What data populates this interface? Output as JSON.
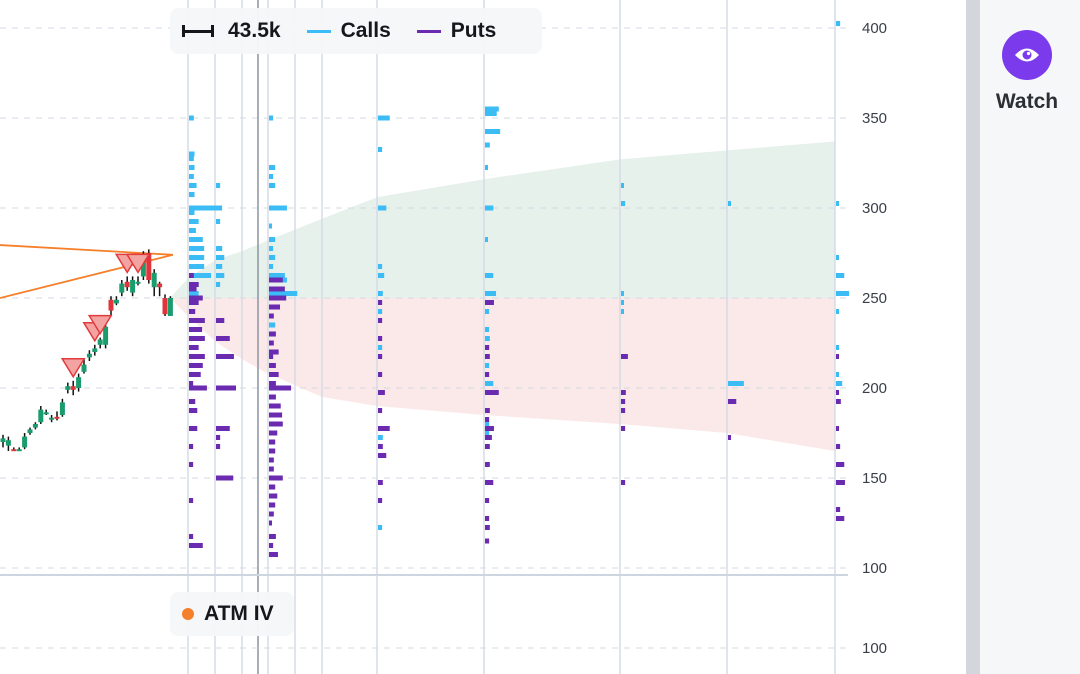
{
  "colors": {
    "calls": "#3bbcf5",
    "puts": "#6a2bb0",
    "candle_up": "#1a9c6c",
    "candle_down": "#e0363b",
    "trendline": "#f57f2a",
    "marker_fill": "#f4a3a3",
    "marker_stroke": "#e23b3b",
    "cone_up": "#e7f1ec",
    "cone_down": "#fbe9e9",
    "watch": "#7c3aed",
    "atm_iv": "#f57f2a"
  },
  "legend": {
    "scale_label": "43.5k",
    "calls_label": "Calls",
    "puts_label": "Puts",
    "atm_iv_label": "ATM IV"
  },
  "sidebar": {
    "watch_label": "Watch",
    "watch_icon": "eye-icon"
  },
  "lower_pane": {
    "y_ticks": [
      "100",
      "100"
    ]
  },
  "chart_data": {
    "type": "candlestick+options-volume-profile",
    "y_ticks": [
      400,
      350,
      300,
      250,
      200,
      150,
      100
    ],
    "ylim": [
      100,
      400
    ],
    "scale_volume_k": 43.5,
    "candles": [
      [
        170,
        172,
        174,
        167
      ],
      [
        168,
        171,
        173,
        165
      ],
      [
        166,
        165.5,
        167,
        165
      ],
      [
        165.5,
        166,
        167,
        165
      ],
      [
        167,
        173,
        175,
        166
      ],
      [
        175,
        177,
        178,
        174
      ],
      [
        178,
        180,
        181,
        177
      ],
      [
        181,
        188,
        190,
        180
      ],
      [
        186,
        186.5,
        188,
        185
      ],
      [
        183,
        183.5,
        185,
        181
      ],
      [
        184,
        183,
        187,
        182
      ],
      [
        185,
        192,
        194,
        184
      ],
      [
        199,
        201,
        203,
        197
      ],
      [
        201,
        199,
        204,
        196
      ],
      [
        200,
        206,
        208,
        198
      ],
      [
        209,
        213,
        216,
        208
      ],
      [
        217,
        219,
        221,
        215
      ],
      [
        220,
        222,
        224,
        218
      ],
      [
        224,
        227,
        228,
        222
      ],
      [
        224,
        234,
        236,
        222
      ],
      [
        249,
        243,
        251,
        240
      ],
      [
        247,
        249,
        251,
        246
      ],
      [
        253,
        258,
        260,
        251
      ],
      [
        259,
        256,
        262,
        254
      ],
      [
        253,
        260,
        262,
        251
      ],
      [
        258,
        259,
        262,
        257
      ],
      [
        262,
        274,
        276,
        260
      ],
      [
        275,
        260,
        277,
        258
      ],
      [
        256,
        264,
        266,
        251
      ],
      [
        258,
        256,
        259,
        251
      ],
      [
        250,
        241,
        252,
        240
      ],
      [
        240,
        250,
        251,
        240
      ]
    ],
    "signal_markers": [
      13,
      17,
      18,
      23,
      25
    ],
    "trendlines": [
      {
        "from": [
          0,
          279.4
        ],
        "to": [
          30,
          274
        ]
      },
      {
        "from": [
          0,
          250
        ],
        "to": [
          30,
          274
        ]
      }
    ],
    "expected_move_cone": {
      "center": 250,
      "upper": [
        250,
        261,
        271,
        276,
        282,
        294,
        306,
        316,
        327,
        332,
        337
      ],
      "lower": [
        250,
        240,
        226,
        216,
        208,
        195,
        190,
        185,
        180,
        175,
        165
      ]
    },
    "expiries": [
      {
        "calls": [
          [
            350,
            7
          ],
          [
            330,
            8
          ],
          [
            327.5,
            7
          ],
          [
            322.5,
            8
          ],
          [
            317.5,
            7
          ],
          [
            312.5,
            11
          ],
          [
            307.5,
            8
          ],
          [
            300,
            48
          ],
          [
            297.5,
            8
          ],
          [
            292.5,
            14
          ],
          [
            287.5,
            10
          ],
          [
            282.5,
            20
          ],
          [
            277.5,
            22
          ],
          [
            272.5,
            22
          ],
          [
            267.5,
            22
          ],
          [
            262.5,
            32
          ],
          [
            257.5,
            14
          ],
          [
            252.5,
            14
          ]
        ],
        "puts": [
          [
            262.5,
            7
          ],
          [
            257.5,
            14
          ],
          [
            255,
            11
          ],
          [
            250,
            20
          ],
          [
            247.5,
            14
          ],
          [
            242.5,
            9
          ],
          [
            237.5,
            23
          ],
          [
            232.5,
            19
          ],
          [
            227.5,
            23
          ],
          [
            222.5,
            14
          ],
          [
            217.5,
            23
          ],
          [
            212.5,
            20
          ],
          [
            207.5,
            17
          ],
          [
            202.5,
            6
          ],
          [
            200,
            26
          ],
          [
            192.5,
            9
          ],
          [
            187.5,
            12
          ],
          [
            177.5,
            12
          ],
          [
            167.5,
            6
          ],
          [
            157.5,
            6
          ],
          [
            137.5,
            6
          ],
          [
            117.5,
            6
          ],
          [
            112.5,
            20
          ]
        ]
      },
      {
        "calls": [
          [
            312.5,
            6
          ],
          [
            292.5,
            6
          ],
          [
            277.5,
            9
          ],
          [
            272.5,
            12
          ],
          [
            267.5,
            9
          ],
          [
            262.5,
            12
          ],
          [
            257.5,
            6
          ]
        ],
        "puts": [
          [
            237.5,
            12
          ],
          [
            227.5,
            20
          ],
          [
            217.5,
            26
          ],
          [
            200,
            29
          ],
          [
            177.5,
            20
          ],
          [
            172.5,
            6
          ],
          [
            167.5,
            6
          ],
          [
            150,
            25
          ]
        ]
      },
      {
        "calls": [],
        "puts": []
      },
      {
        "calls": [
          [
            350,
            6
          ],
          [
            322.5,
            9
          ],
          [
            317.5,
            6
          ],
          [
            312.5,
            9
          ],
          [
            300,
            26
          ],
          [
            290,
            4
          ],
          [
            282.5,
            9
          ],
          [
            277.5,
            6
          ],
          [
            272.5,
            9
          ],
          [
            267.5,
            6
          ],
          [
            262.5,
            23
          ],
          [
            260,
            26
          ],
          [
            252.5,
            41
          ],
          [
            235,
            9
          ]
        ],
        "puts": [
          [
            260,
            20
          ],
          [
            255,
            23
          ],
          [
            250,
            25
          ],
          [
            245,
            16
          ],
          [
            240,
            7
          ],
          [
            230,
            10
          ],
          [
            225,
            7
          ],
          [
            220,
            14
          ],
          [
            217.5,
            6
          ],
          [
            212.5,
            10
          ],
          [
            207.5,
            14
          ],
          [
            202.5,
            10
          ],
          [
            200,
            32
          ],
          [
            195,
            10
          ],
          [
            190,
            17
          ],
          [
            185,
            19
          ],
          [
            180,
            20
          ],
          [
            175,
            12
          ],
          [
            170,
            9
          ],
          [
            165,
            9
          ],
          [
            160,
            7
          ],
          [
            155,
            7
          ],
          [
            150,
            20
          ],
          [
            145,
            9
          ],
          [
            140,
            12
          ],
          [
            135,
            9
          ],
          [
            130,
            7
          ],
          [
            125,
            4
          ],
          [
            117.5,
            10
          ],
          [
            112.5,
            6
          ],
          [
            107.5,
            13
          ]
        ]
      },
      {
        "calls": [],
        "puts": []
      },
      {
        "calls": [],
        "puts": []
      },
      {
        "calls": [
          [
            350,
            17
          ],
          [
            332.5,
            6
          ],
          [
            300,
            12
          ],
          [
            267.5,
            6
          ],
          [
            262.5,
            9
          ],
          [
            252.5,
            7
          ],
          [
            242.5,
            6
          ],
          [
            222.5,
            6
          ],
          [
            172.5,
            7
          ],
          [
            122.5,
            6
          ]
        ],
        "puts": [
          [
            247.5,
            6
          ],
          [
            237.5,
            6
          ],
          [
            227.5,
            6
          ],
          [
            217.5,
            6
          ],
          [
            207.5,
            6
          ],
          [
            197.5,
            10
          ],
          [
            187.5,
            6
          ],
          [
            177.5,
            17
          ],
          [
            167.5,
            7
          ],
          [
            162.5,
            12
          ],
          [
            147.5,
            7
          ],
          [
            137.5,
            6
          ]
        ]
      },
      {
        "calls": [
          [
            355,
            20
          ],
          [
            352.5,
            17
          ],
          [
            342.5,
            22
          ],
          [
            335,
            7
          ],
          [
            322.5,
            4
          ],
          [
            300,
            12
          ],
          [
            282.5,
            4
          ],
          [
            262.5,
            12
          ],
          [
            252.5,
            16
          ],
          [
            242.5,
            6
          ],
          [
            232.5,
            6
          ],
          [
            227.5,
            7
          ],
          [
            222.5,
            6
          ],
          [
            212.5,
            6
          ],
          [
            202.5,
            12
          ],
          [
            180,
            6
          ],
          [
            175,
            6
          ]
        ],
        "puts": [
          [
            247.5,
            13
          ],
          [
            222.5,
            6
          ],
          [
            217.5,
            7
          ],
          [
            207.5,
            6
          ],
          [
            197.5,
            20
          ],
          [
            187.5,
            7
          ],
          [
            182.5,
            6
          ],
          [
            177.5,
            13
          ],
          [
            172.5,
            10
          ],
          [
            167.5,
            7
          ],
          [
            157.5,
            7
          ],
          [
            147.5,
            12
          ],
          [
            137.5,
            6
          ],
          [
            127.5,
            6
          ],
          [
            122.5,
            7
          ],
          [
            115,
            6
          ]
        ]
      },
      {
        "calls": [
          [
            312.5,
            4
          ],
          [
            302.5,
            6
          ],
          [
            252.5,
            4
          ],
          [
            247.5,
            4
          ],
          [
            242.5,
            4
          ]
        ],
        "puts": [
          [
            217.5,
            10
          ],
          [
            197.5,
            7
          ],
          [
            192.5,
            6
          ],
          [
            187.5,
            6
          ],
          [
            177.5,
            6
          ],
          [
            147.5,
            6
          ]
        ]
      },
      {
        "calls": [
          [
            302.5,
            4
          ],
          [
            202.5,
            23
          ]
        ],
        "puts": [
          [
            192.5,
            12
          ],
          [
            172.5,
            4
          ]
        ]
      },
      {
        "calls": [
          [
            402.5,
            6
          ],
          [
            302.5,
            4
          ],
          [
            272.5,
            4
          ],
          [
            262.5,
            12
          ],
          [
            252.5,
            19
          ],
          [
            242.5,
            4
          ],
          [
            222.5,
            4
          ],
          [
            207.5,
            4
          ],
          [
            202.5,
            9
          ]
        ],
        "puts": [
          [
            217.5,
            4
          ],
          [
            197.5,
            4
          ],
          [
            192.5,
            7
          ],
          [
            177.5,
            4
          ],
          [
            167.5,
            6
          ],
          [
            157.5,
            12
          ],
          [
            147.5,
            13
          ],
          [
            132.5,
            6
          ],
          [
            127.5,
            12
          ]
        ]
      }
    ]
  }
}
